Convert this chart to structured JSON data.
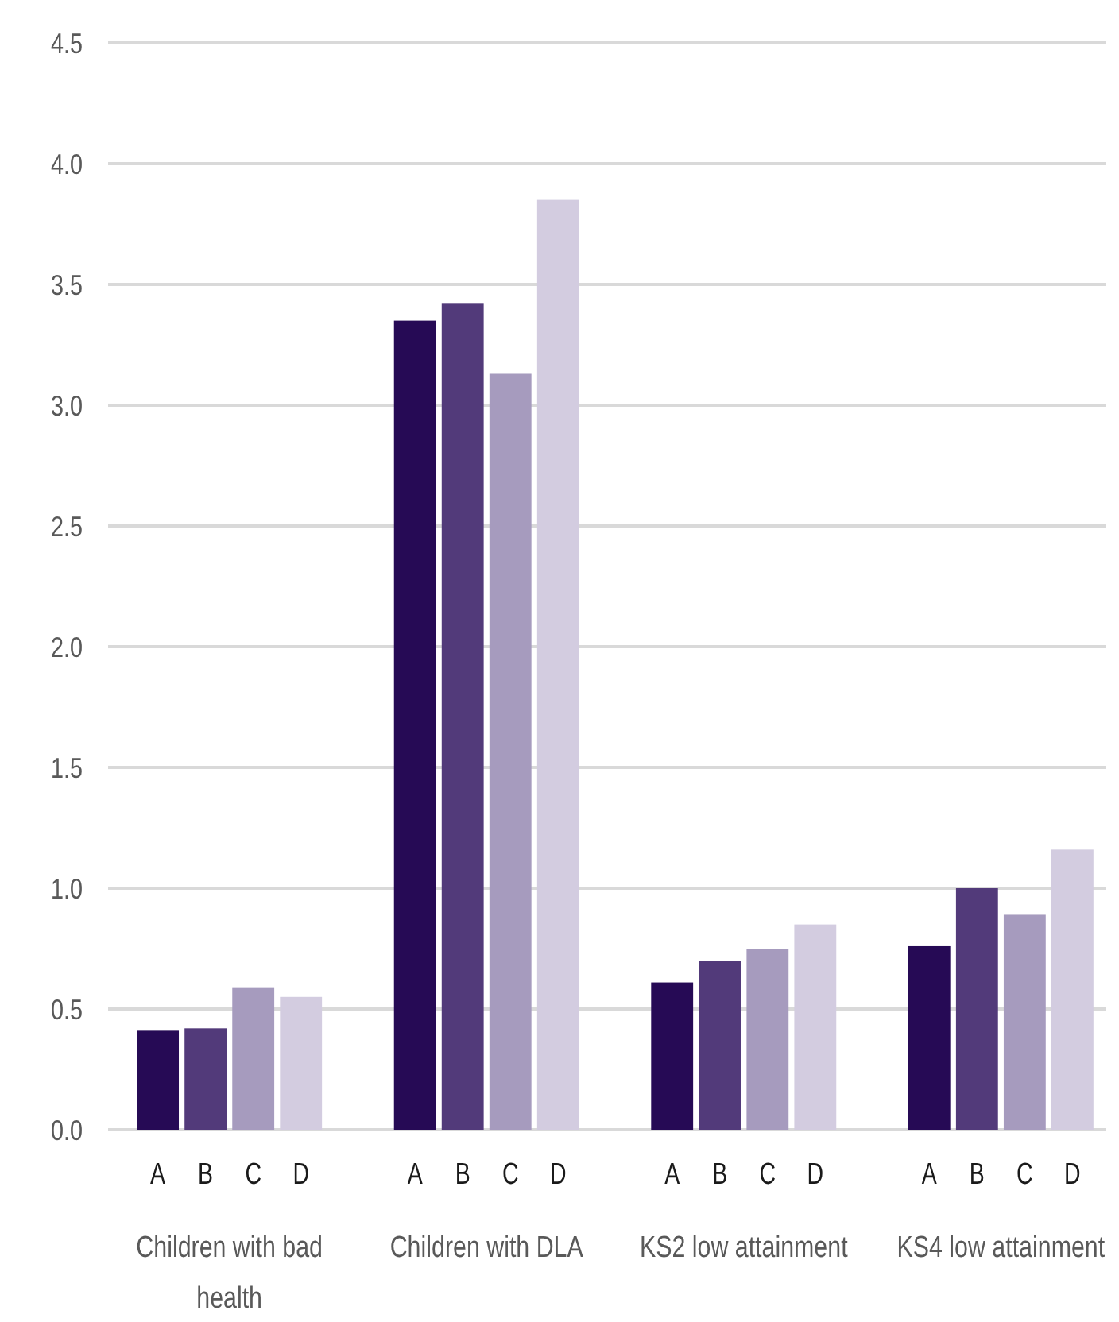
{
  "chart_data": {
    "type": "bar",
    "categories": [
      "Children with bad health",
      "Children with DLA",
      "KS2 low attainment",
      "KS4 low attainment"
    ],
    "series": [
      {
        "name": "A",
        "color": "#260a55",
        "values": [
          0.41,
          3.35,
          0.61,
          0.76
        ]
      },
      {
        "name": "B",
        "color": "#523a7a",
        "values": [
          0.42,
          3.42,
          0.7,
          1.0
        ]
      },
      {
        "name": "C",
        "color": "#a69bbe",
        "values": [
          0.59,
          3.13,
          0.75,
          0.89
        ]
      },
      {
        "name": "D",
        "color": "#d3cce0",
        "values": [
          0.55,
          3.85,
          0.85,
          1.16
        ]
      }
    ],
    "ylim": [
      0,
      4.5
    ],
    "yticks": [
      {
        "value": 0,
        "label": "0.0"
      },
      {
        "value": 0.5,
        "label": "0.5"
      },
      {
        "value": 1,
        "label": "1.0"
      },
      {
        "value": 1.5,
        "label": "1.5"
      },
      {
        "value": 2,
        "label": "2.0"
      },
      {
        "value": 2.5,
        "label": "2.5"
      },
      {
        "value": 3,
        "label": "3.0"
      },
      {
        "value": 3.5,
        "label": "3.5"
      },
      {
        "value": 4,
        "label": "4.0"
      },
      {
        "value": 4.5,
        "label": "4.5"
      }
    ],
    "grid": "y",
    "legend": "bottom"
  }
}
